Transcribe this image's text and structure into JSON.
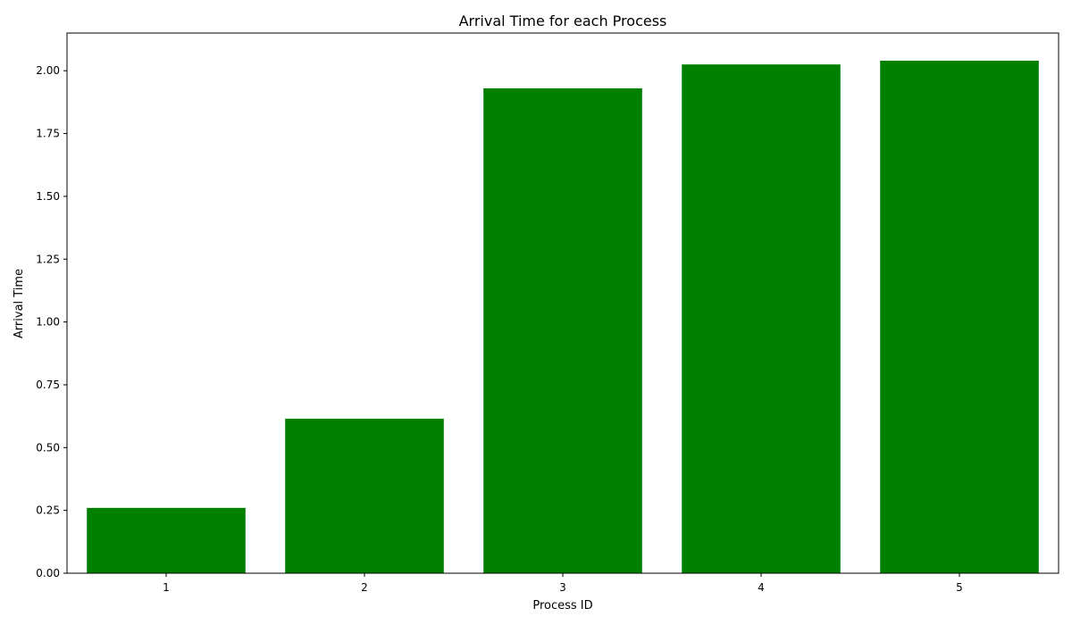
{
  "chart_data": {
    "type": "bar",
    "title": "Arrival Time for each Process",
    "xlabel": "Process ID",
    "ylabel": "Arrival Time",
    "categories": [
      "1",
      "2",
      "3",
      "4",
      "5"
    ],
    "values": [
      0.26,
      0.615,
      1.93,
      2.025,
      2.04
    ],
    "ylim": [
      0,
      2.15
    ],
    "yticks": [
      "0.00",
      "0.25",
      "0.50",
      "0.75",
      "1.00",
      "1.25",
      "1.50",
      "1.75",
      "2.00"
    ],
    "bar_color": "#008000",
    "grid": false,
    "legend": "none"
  }
}
